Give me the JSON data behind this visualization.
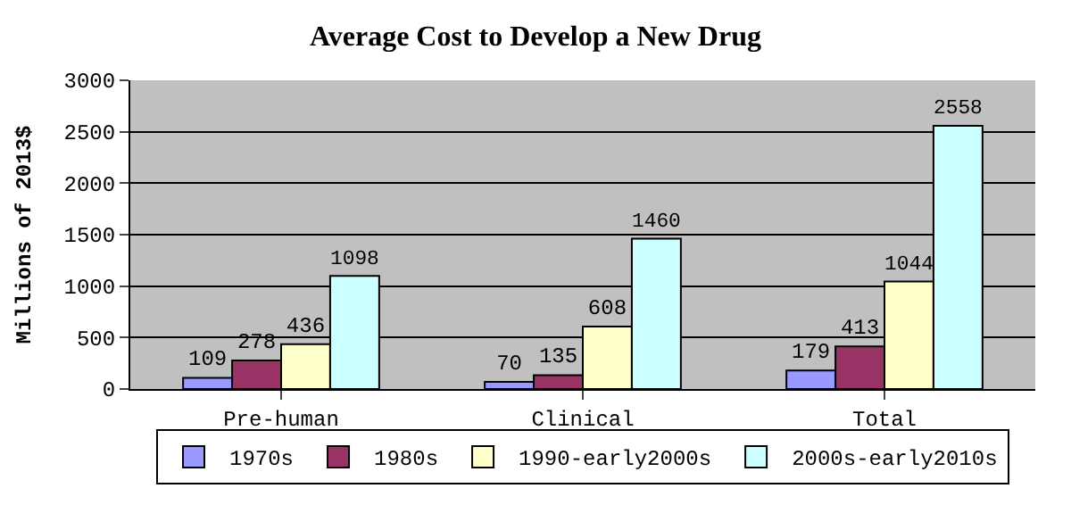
{
  "chart_data": {
    "type": "bar",
    "title": "Average Cost to Develop a New Drug",
    "ylabel": "Millions of 2013$",
    "categories": [
      "Pre-human",
      "Clinical",
      "Total"
    ],
    "series": [
      {
        "name": "1970s",
        "color": "#9999ff",
        "values": [
          109,
          70,
          179
        ]
      },
      {
        "name": "1980s",
        "color": "#993366",
        "values": [
          278,
          135,
          413
        ]
      },
      {
        "name": "1990-early2000s",
        "color": "#ffffcc",
        "values": [
          436,
          608,
          1044
        ]
      },
      {
        "name": "2000s-early2010s",
        "color": "#ccffff",
        "values": [
          1098,
          1460,
          2558
        ]
      }
    ],
    "ylim": [
      0,
      3000
    ],
    "yticks": [
      0,
      500,
      1000,
      1500,
      2000,
      2500,
      3000
    ],
    "grid": "y",
    "legend": "bottom",
    "data_labels": true
  }
}
